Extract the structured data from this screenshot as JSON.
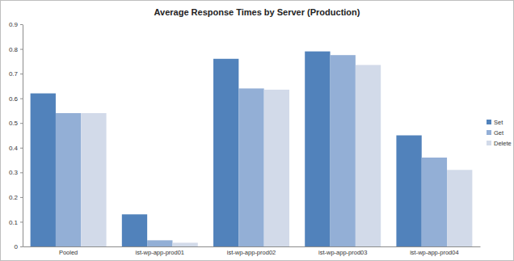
{
  "chart_data": {
    "type": "bar",
    "title": "Average Response Times by Server (Production)",
    "categories": [
      "Pooled",
      "ist-wp-app-prod01",
      "ist-wp-app-prod02",
      "ist-wp-app-prod03",
      "ist-wp-app-prod04"
    ],
    "series": [
      {
        "name": "Set",
        "color": "#5182bb",
        "values": [
          0.62,
          0.13,
          0.76,
          0.79,
          0.45
        ]
      },
      {
        "name": "Get",
        "color": "#93afd6",
        "values": [
          0.54,
          0.025,
          0.64,
          0.775,
          0.36
        ]
      },
      {
        "name": "Delete",
        "color": "#d2dae9",
        "values": [
          0.54,
          0.015,
          0.635,
          0.735,
          0.31
        ]
      }
    ],
    "ylim": [
      0,
      0.9
    ],
    "yticks": [
      0,
      0.1,
      0.2,
      0.3,
      0.4,
      0.5,
      0.6,
      0.7,
      0.8,
      0.9
    ],
    "grid": false,
    "legend": "right"
  }
}
